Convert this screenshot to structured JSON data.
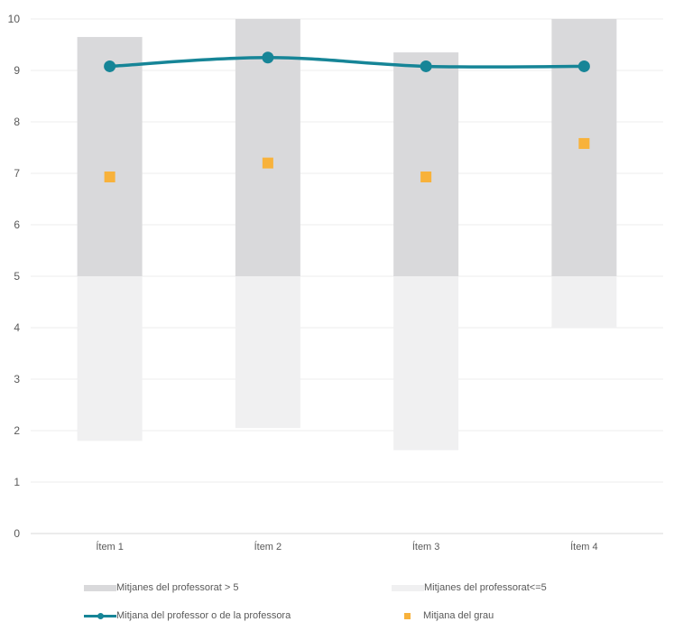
{
  "chart_data": {
    "type": "bar",
    "title": "",
    "xlabel": "",
    "ylabel": "",
    "ylim": [
      0,
      10
    ],
    "yticks": [
      "0",
      "1",
      "2",
      "3",
      "4",
      "5",
      "6",
      "7",
      "8",
      "9",
      "10"
    ],
    "categories": [
      "Ítem 1",
      "Ítem 2",
      "Ítem 3",
      "Ítem 4"
    ],
    "grid": true,
    "legend_position": "bottom",
    "series": [
      {
        "name": "Mitjanes del professorat > 5",
        "kind": "floating-bar",
        "ranges": [
          [
            5,
            9.65
          ],
          [
            5,
            10
          ],
          [
            5,
            9.35
          ],
          [
            5,
            10
          ]
        ],
        "color": "#d9d9db"
      },
      {
        "name": "Mitjanes del professorat<=5",
        "kind": "floating-bar",
        "ranges": [
          [
            1.8,
            5
          ],
          [
            2.05,
            5
          ],
          [
            1.62,
            5
          ],
          [
            4,
            5
          ]
        ],
        "color": "#f0f0f1"
      },
      {
        "name": "Mitjana del professor o de la professora",
        "kind": "line",
        "values": [
          9.08,
          9.25,
          9.08,
          9.08
        ],
        "color": "#168597"
      },
      {
        "name": "Mitjana del grau",
        "kind": "marker",
        "values": [
          6.93,
          7.2,
          6.93,
          7.58
        ],
        "color": "#f8b23b"
      }
    ]
  }
}
